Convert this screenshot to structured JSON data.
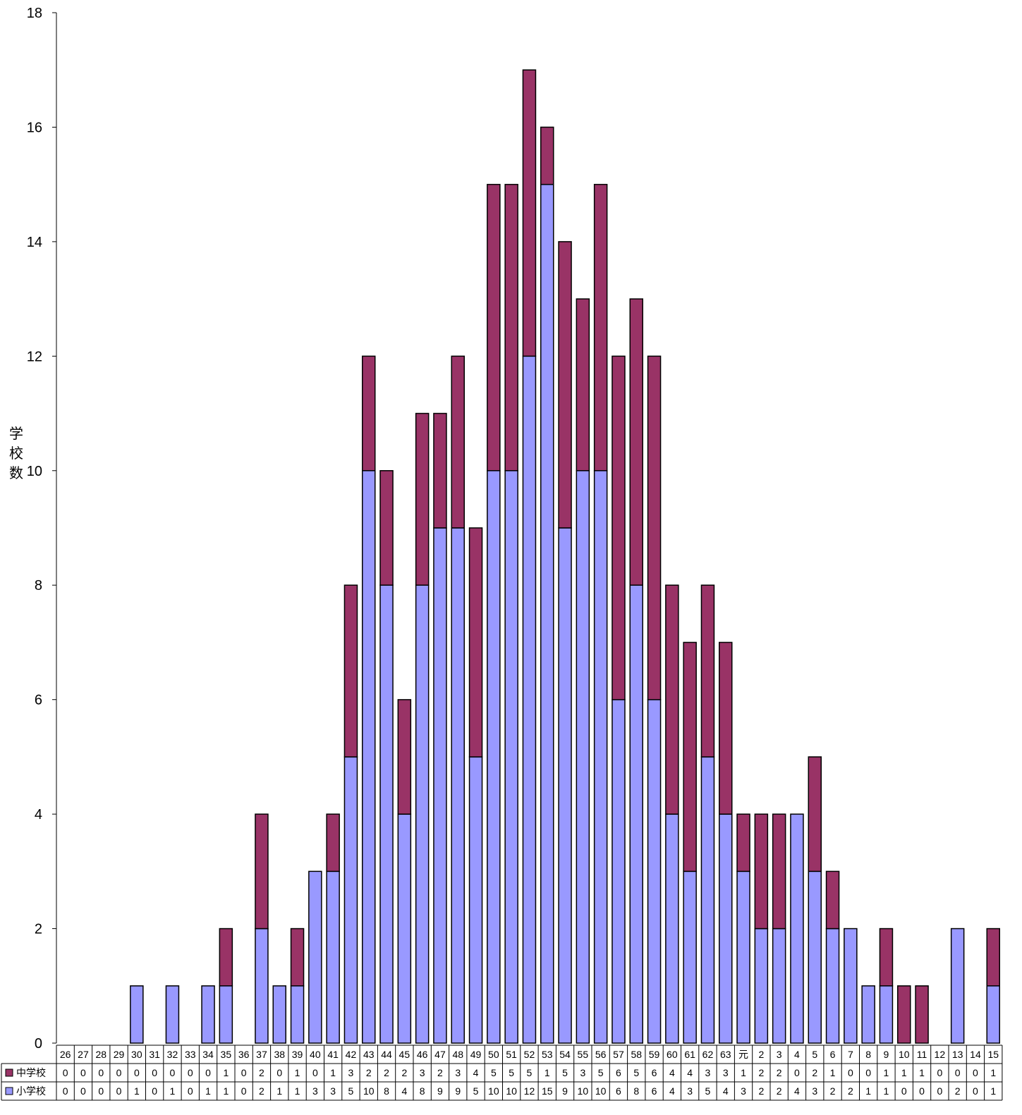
{
  "chart_data": {
    "type": "bar",
    "stacked": true,
    "title": "",
    "xlabel": "",
    "ylabel": "学校数",
    "ylim": [
      0,
      18
    ],
    "yticks": [
      0,
      2,
      4,
      6,
      8,
      10,
      12,
      14,
      16,
      18
    ],
    "grid": false,
    "legend_placement": "bottom-left data table",
    "categories": [
      "26",
      "27",
      "28",
      "29",
      "30",
      "31",
      "32",
      "33",
      "34",
      "35",
      "36",
      "37",
      "38",
      "39",
      "40",
      "41",
      "42",
      "43",
      "44",
      "45",
      "46",
      "47",
      "48",
      "49",
      "50",
      "51",
      "52",
      "53",
      "54",
      "55",
      "56",
      "57",
      "58",
      "59",
      "60",
      "61",
      "62",
      "63",
      "元",
      "2",
      "3",
      "4",
      "5",
      "6",
      "7",
      "8",
      "9",
      "10",
      "11",
      "12",
      "13",
      "14",
      "15"
    ],
    "series": [
      {
        "name": "小学校",
        "color": "#9999ff",
        "values": [
          0,
          0,
          0,
          0,
          1,
          0,
          1,
          0,
          1,
          1,
          0,
          2,
          1,
          1,
          3,
          3,
          5,
          10,
          8,
          4,
          8,
          9,
          9,
          5,
          10,
          10,
          12,
          15,
          9,
          10,
          10,
          6,
          8,
          6,
          4,
          3,
          5,
          4,
          3,
          2,
          2,
          4,
          3,
          2,
          2,
          1,
          1,
          0,
          0,
          0,
          2,
          0,
          1
        ]
      },
      {
        "name": "中学校",
        "color": "#993366",
        "values": [
          0,
          0,
          0,
          0,
          0,
          0,
          0,
          0,
          0,
          1,
          0,
          2,
          0,
          1,
          0,
          1,
          3,
          2,
          2,
          2,
          3,
          2,
          3,
          4,
          5,
          5,
          5,
          1,
          5,
          3,
          5,
          6,
          5,
          6,
          4,
          4,
          3,
          3,
          1,
          2,
          2,
          0,
          2,
          1,
          0,
          0,
          1,
          1,
          1,
          0,
          0,
          0,
          1
        ]
      }
    ]
  }
}
